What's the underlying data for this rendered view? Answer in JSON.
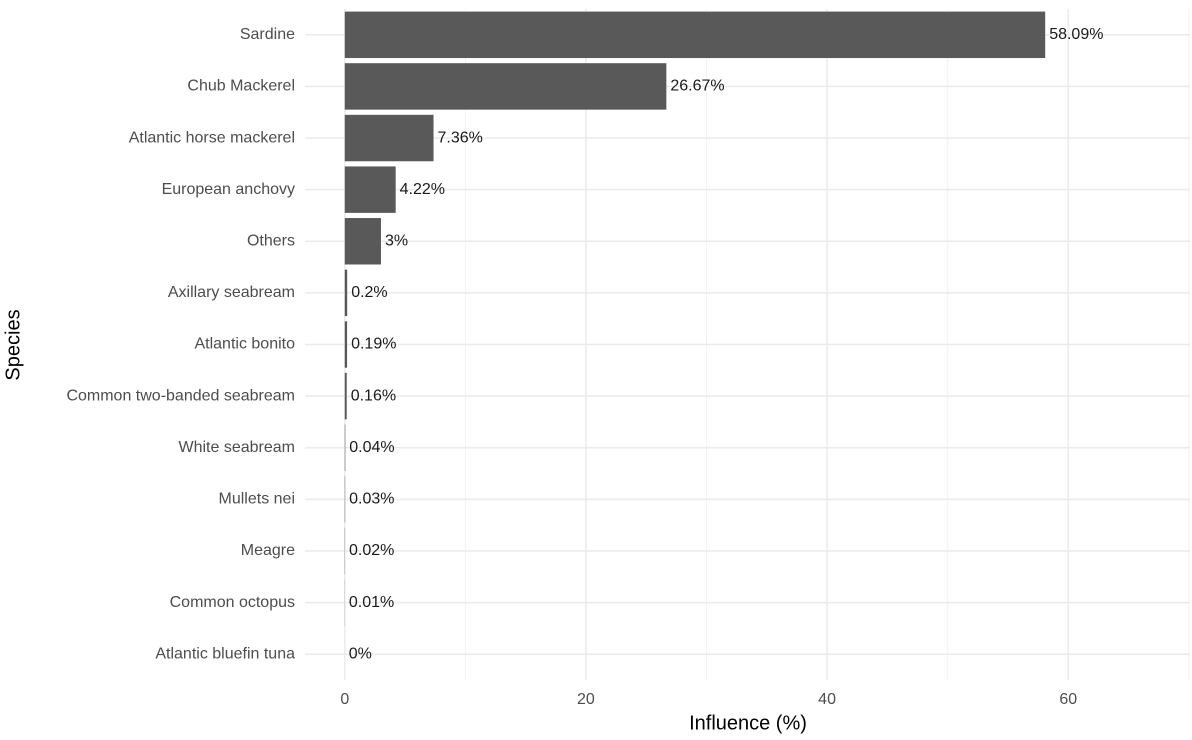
{
  "chart_data": {
    "type": "bar",
    "orientation": "horizontal",
    "x_label": "Influence (%)",
    "y_label": "Species",
    "categories": [
      "Sardine",
      "Chub Mackerel",
      "Atlantic horse mackerel",
      "European anchovy",
      "Others",
      "Axillary seabream",
      "Atlantic bonito",
      "Common two-banded seabream",
      "White seabream",
      "Mullets nei",
      "Meagre",
      "Common octopus",
      "Atlantic bluefin tuna"
    ],
    "values": [
      58.09,
      26.67,
      7.36,
      4.22,
      3,
      0.2,
      0.19,
      0.16,
      0.04,
      0.03,
      0.02,
      0.01,
      0
    ],
    "value_labels": [
      "58.09%",
      "26.67%",
      "7.36%",
      "4.22%",
      "3%",
      "0.2%",
      "0.19%",
      "0.16%",
      "0.04%",
      "0.03%",
      "0.02%",
      "0.01%",
      "0%"
    ],
    "color": "#595959",
    "xlim": [
      -3.3,
      70.1
    ],
    "xticks": [
      0,
      20,
      40,
      60
    ],
    "xminor": [
      10,
      30,
      50,
      70
    ],
    "grid": true
  }
}
